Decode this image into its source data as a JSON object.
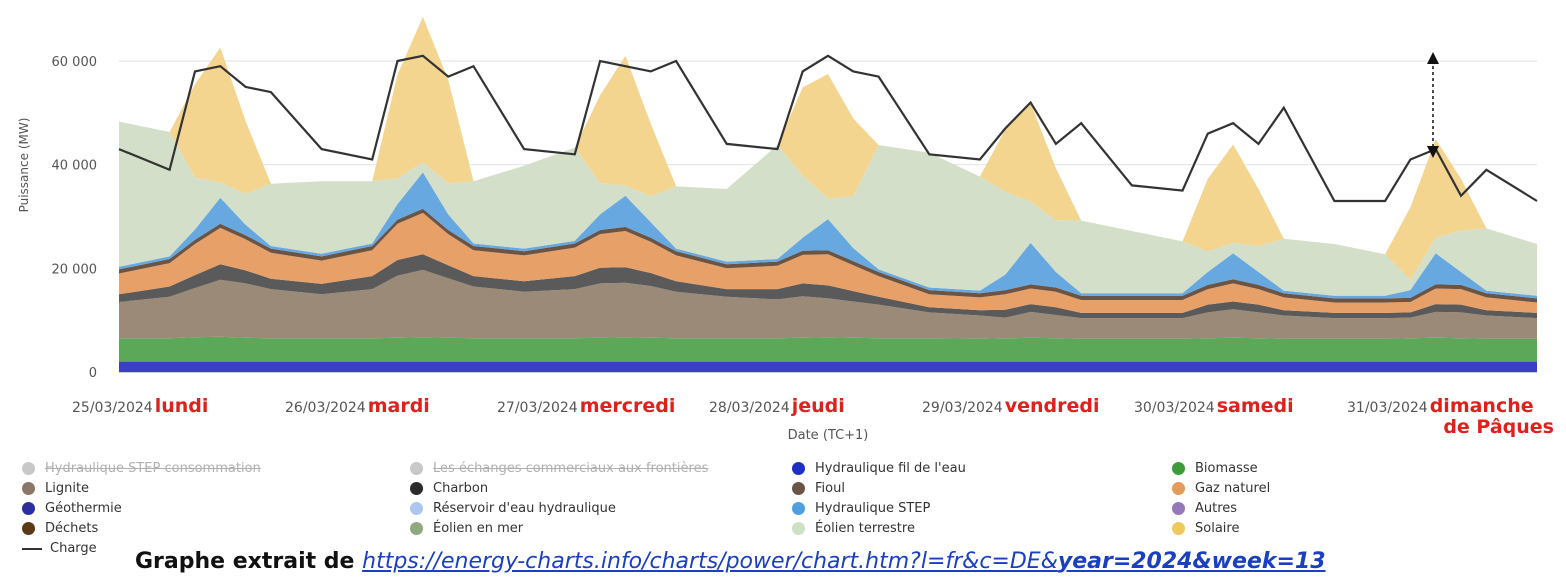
{
  "chart_data": {
    "type": "area",
    "ylabel": "Puissance (MW)",
    "xlabel": "Date (TC+1)",
    "ylim": [
      0,
      70000
    ],
    "yticks": [
      "0",
      "20 000",
      "40 000",
      "60 000"
    ],
    "ytick_values": [
      0,
      20000,
      40000,
      60000
    ],
    "grid": true,
    "legend_position": "bottom",
    "days": [
      {
        "date": "25/03/2024",
        "day": "lundi"
      },
      {
        "date": "26/03/2024",
        "day": "mardi"
      },
      {
        "date": "27/03/2024",
        "day": "mercredi"
      },
      {
        "date": "28/03/2024",
        "day": "jeudi"
      },
      {
        "date": "29/03/2024",
        "day": "vendredi"
      },
      {
        "date": "30/03/2024",
        "day": "samedi"
      },
      {
        "date": "31/03/2024",
        "day": "dimanche",
        "day2": "de Pâques"
      }
    ],
    "x_hours": [
      0,
      6,
      9,
      12,
      15,
      18,
      24,
      30,
      33,
      36,
      39,
      42,
      48,
      54,
      57,
      60,
      63,
      66,
      72,
      78,
      81,
      84,
      87,
      90,
      96,
      102,
      105,
      108,
      111,
      114,
      120,
      126,
      129,
      132,
      135,
      138,
      144,
      150,
      153,
      156,
      159,
      162,
      168
    ],
    "series": [
      {
        "name": "Géothermie",
        "color": "#3a3fc4",
        "values": [
          2000,
          2000,
          2000,
          2000,
          2000,
          2000,
          2000,
          2000,
          2000,
          2000,
          2000,
          2000,
          2000,
          2000,
          2000,
          2000,
          2000,
          2000,
          2000,
          2000,
          2000,
          2000,
          2000,
          2000,
          2000,
          2000,
          2000,
          2000,
          2000,
          2000,
          2000,
          2000,
          2000,
          2000,
          2000,
          2000,
          2000,
          2000,
          2000,
          2000,
          2000,
          2000,
          2000
        ]
      },
      {
        "name": "Biomasse",
        "color": "#5aa858",
        "values": [
          4500,
          4500,
          4700,
          4800,
          4600,
          4500,
          4500,
          4500,
          4600,
          4700,
          4600,
          4500,
          4500,
          4500,
          4600,
          4700,
          4600,
          4500,
          4500,
          4500,
          4600,
          4700,
          4600,
          4500,
          4500,
          4400,
          4500,
          4600,
          4500,
          4400,
          4400,
          4400,
          4500,
          4600,
          4500,
          4400,
          4400,
          4400,
          4500,
          4600,
          4500,
          4400,
          4400
        ]
      },
      {
        "name": "Lignite",
        "color": "#9b8a78",
        "values": [
          7000,
          8000,
          9500,
          11000,
          10500,
          9500,
          8500,
          9500,
          12000,
          13000,
          11500,
          10000,
          9000,
          9500,
          10500,
          10500,
          10000,
          9000,
          8000,
          7500,
          8000,
          7500,
          7000,
          6500,
          5000,
          4500,
          4000,
          5000,
          4500,
          4000,
          4000,
          4000,
          5000,
          5500,
          5000,
          4500,
          4000,
          4000,
          4000,
          5000,
          5000,
          4500,
          4000
        ]
      },
      {
        "name": "Charbon",
        "color": "#5a5a5a",
        "values": [
          1500,
          2000,
          2500,
          3000,
          2500,
          2000,
          2000,
          2500,
          3000,
          3000,
          2500,
          2000,
          2000,
          2500,
          3000,
          3000,
          2500,
          2000,
          1500,
          2000,
          2500,
          2500,
          2000,
          1500,
          1000,
          1000,
          1500,
          1500,
          1500,
          1000,
          1000,
          1000,
          1500,
          1500,
          1500,
          1000,
          1000,
          1000,
          1000,
          1500,
          1500,
          1000,
          1000
        ]
      },
      {
        "name": "Gaz naturel",
        "color": "#e7a068",
        "values": [
          4000,
          4500,
          6000,
          7000,
          6000,
          5000,
          4500,
          5000,
          7000,
          8000,
          6000,
          5000,
          5000,
          5500,
          6500,
          7000,
          6000,
          5000,
          4000,
          4500,
          5500,
          6000,
          5000,
          4000,
          2500,
          2500,
          3000,
          3000,
          3000,
          2500,
          2500,
          2500,
          3000,
          3500,
          3000,
          2500,
          2000,
          2000,
          2000,
          3000,
          3000,
          2500,
          2000
        ]
      },
      {
        "name": "Fioul",
        "color": "#6b5444",
        "values": [
          800,
          800,
          800,
          800,
          800,
          800,
          800,
          800,
          800,
          800,
          800,
          800,
          800,
          800,
          800,
          800,
          800,
          800,
          800,
          800,
          800,
          800,
          800,
          800,
          800,
          800,
          800,
          800,
          800,
          800,
          800,
          800,
          800,
          800,
          800,
          800,
          800,
          800,
          800,
          800,
          800,
          800,
          800
        ]
      },
      {
        "name": "Hydraulique STEP",
        "color": "#66a8df",
        "values": [
          500,
          500,
          2000,
          5000,
          2000,
          500,
          500,
          500,
          3000,
          7000,
          3000,
          500,
          500,
          500,
          3000,
          6000,
          3000,
          500,
          500,
          500,
          2500,
          6000,
          2500,
          500,
          500,
          500,
          3000,
          8000,
          3000,
          500,
          500,
          500,
          2500,
          5000,
          2500,
          500,
          500,
          500,
          1500,
          6000,
          2500,
          500,
          500
        ]
      },
      {
        "name": "Éolien terrestre",
        "color": "#d3dfc8",
        "values": [
          28000,
          24000,
          10000,
          3000,
          6000,
          12000,
          14000,
          12000,
          5000,
          2000,
          6000,
          12000,
          16000,
          18000,
          6000,
          2000,
          5000,
          12000,
          14000,
          22000,
          12000,
          4000,
          10000,
          24000,
          26000,
          22000,
          16000,
          8000,
          10000,
          14000,
          12000,
          10000,
          4000,
          2000,
          5000,
          10000,
          10000,
          8000,
          2000,
          3000,
          8000,
          12000,
          10000
        ]
      },
      {
        "name": "Solaire",
        "color": "#f4d58f",
        "values": [
          0,
          0,
          18000,
          26000,
          14000,
          0,
          0,
          0,
          20000,
          28000,
          20000,
          0,
          0,
          0,
          17000,
          25000,
          14000,
          0,
          0,
          0,
          17000,
          24000,
          15000,
          0,
          0,
          0,
          12000,
          19000,
          10000,
          0,
          0,
          0,
          14000,
          19000,
          11000,
          0,
          0,
          0,
          14000,
          19000,
          10000,
          0,
          0
        ]
      }
    ],
    "charge": {
      "name": "Charge",
      "color": "#333333",
      "values": [
        43000,
        39000,
        58000,
        59000,
        55000,
        54000,
        43000,
        41000,
        60000,
        61000,
        57000,
        59000,
        43000,
        42000,
        60000,
        59000,
        58000,
        60000,
        44000,
        43000,
        58000,
        61000,
        58000,
        57000,
        42000,
        41000,
        47000,
        52000,
        44000,
        48000,
        36000,
        35000,
        46000,
        48000,
        44000,
        51000,
        33000,
        33000,
        41000,
        43000,
        34000,
        39000,
        33000
      ]
    },
    "legend": [
      {
        "name": "Hydraulique STEP consommation",
        "color": "#c8c8c8",
        "hidden": true
      },
      {
        "name": "Les échanges commerciaux aux frontières",
        "color": "#c8c8c8",
        "hidden": true
      },
      {
        "name": "Hydraulique fil de l'eau",
        "color": "#1d2fc4"
      },
      {
        "name": "Biomasse",
        "color": "#3e9b3a"
      },
      {
        "name": "Lignite",
        "color": "#8a7866"
      },
      {
        "name": "Charbon",
        "color": "#2a2a2a"
      },
      {
        "name": "Fioul",
        "color": "#6b5444"
      },
      {
        "name": "Gaz naturel",
        "color": "#e39b5c"
      },
      {
        "name": "Géothermie",
        "color": "#2b2f9e"
      },
      {
        "name": "Réservoir d'eau hydraulique",
        "color": "#aec5f0"
      },
      {
        "name": "Hydraulique STEP",
        "color": "#4f9fe0"
      },
      {
        "name": "Autres",
        "color": "#9478b8"
      },
      {
        "name": "Déchets",
        "color": "#5a3a16"
      },
      {
        "name": "Éolien en mer",
        "color": "#8fab7d"
      },
      {
        "name": "Éolien terrestre",
        "color": "#cfe0c5"
      },
      {
        "name": "Solaire",
        "color": "#f0c95e"
      },
      {
        "name": "Charge",
        "color": "#333333",
        "type": "line"
      }
    ]
  },
  "footer": {
    "prefix": "Graphe extrait de",
    "url_start": "https://energy-charts.info/charts/power/chart.htm?l=fr&c=DE&",
    "url_bold": "year=2024&week=13"
  }
}
